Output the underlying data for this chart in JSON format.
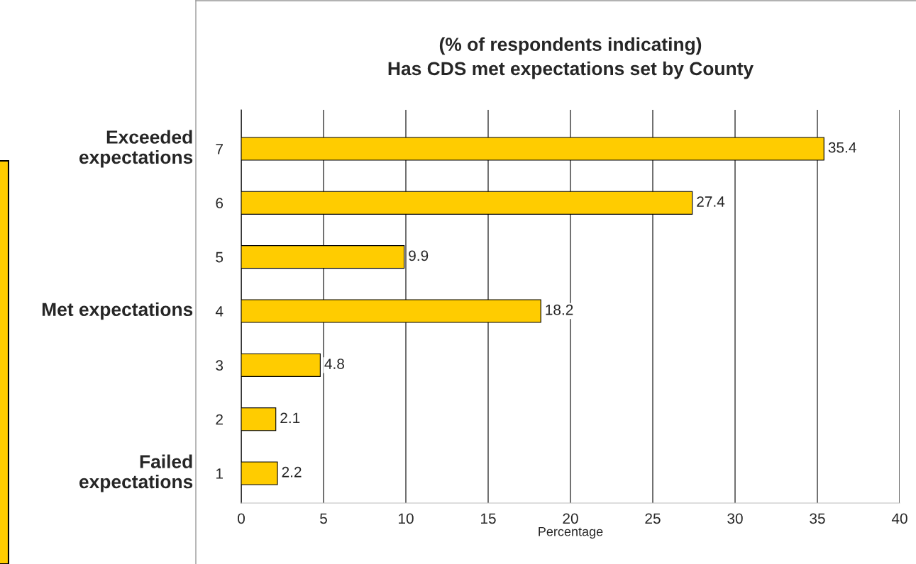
{
  "chart_data": {
    "type": "bar",
    "orientation": "horizontal",
    "title": "(% of respondents indicating)\nHas CDS met expectations set by County",
    "xlabel": "Percentage",
    "categories": [
      "7",
      "6",
      "5",
      "4",
      "3",
      "2",
      "1"
    ],
    "values": [
      35.4,
      27.4,
      9.9,
      18.2,
      4.8,
      2.1,
      2.2
    ],
    "color": "#ffcc00",
    "xlim": [
      0,
      40
    ],
    "xticks": [
      0,
      5,
      10,
      15,
      20,
      25,
      30,
      35,
      40
    ],
    "grid": "x",
    "data_labels": true,
    "annotations": [
      "Exceeded\nexpectations",
      "Met expectations",
      "Failed\nexpectations"
    ]
  }
}
